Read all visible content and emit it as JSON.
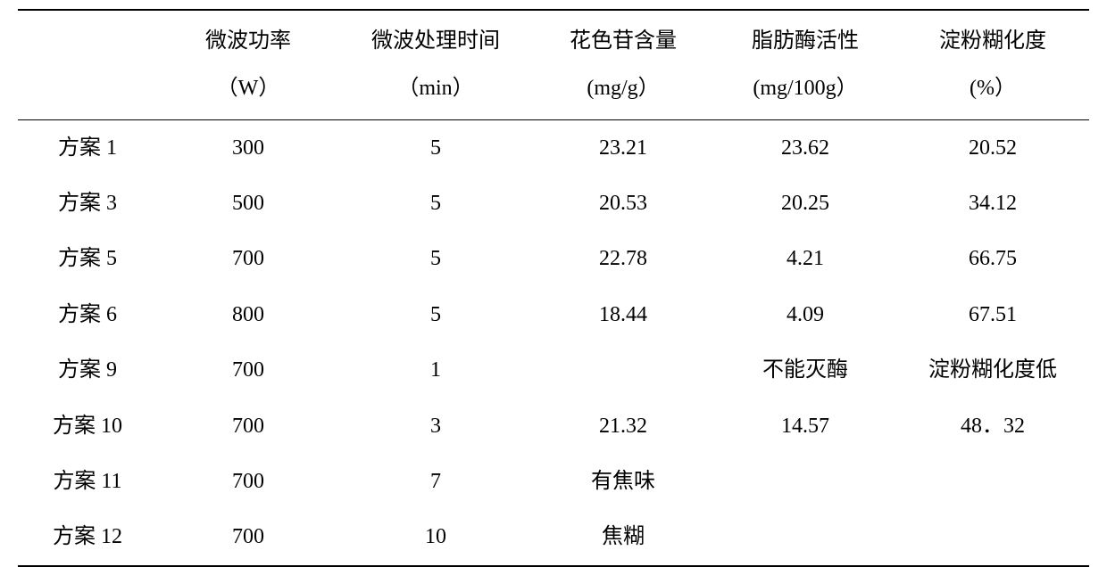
{
  "headers": {
    "scheme": {
      "line1": "",
      "line2": ""
    },
    "power": {
      "line1": "微波功率",
      "line2": "（W）"
    },
    "time": {
      "line1": "微波处理时间",
      "line2": "（min）"
    },
    "anthocyanin": {
      "line1": "花色苷含量",
      "line2": "(mg/g）"
    },
    "lipase": {
      "line1": "脂肪酶活性",
      "line2": "(mg/100g）"
    },
    "gelatin": {
      "line1": "淀粉糊化度",
      "line2": "(%）"
    }
  },
  "rows": [
    {
      "scheme": "方案 1",
      "power": "300",
      "time": "5",
      "anthocyanin": "23.21",
      "lipase": "23.62",
      "gelatin": "20.52"
    },
    {
      "scheme": "方案 3",
      "power": "500",
      "time": "5",
      "anthocyanin": "20.53",
      "lipase": "20.25",
      "gelatin": "34.12"
    },
    {
      "scheme": "方案 5",
      "power": "700",
      "time": "5",
      "anthocyanin": "22.78",
      "lipase": "4.21",
      "gelatin": "66.75"
    },
    {
      "scheme": "方案 6",
      "power": "800",
      "time": "5",
      "anthocyanin": "18.44",
      "lipase": "4.09",
      "gelatin": "67.51"
    },
    {
      "scheme": "方案 9",
      "power": "700",
      "time": "1",
      "anthocyanin": "",
      "lipase": "不能灭酶",
      "gelatin": "淀粉糊化度低"
    },
    {
      "scheme": "方案 10",
      "power": "700",
      "time": "3",
      "anthocyanin": "21.32",
      "lipase": "14.57",
      "gelatin": "48．32"
    },
    {
      "scheme": "方案 11",
      "power": "700",
      "time": "7",
      "anthocyanin": "有焦味",
      "lipase": "",
      "gelatin": ""
    },
    {
      "scheme": "方案 12",
      "power": "700",
      "time": "10",
      "anthocyanin": "焦糊",
      "lipase": "",
      "gelatin": ""
    }
  ]
}
